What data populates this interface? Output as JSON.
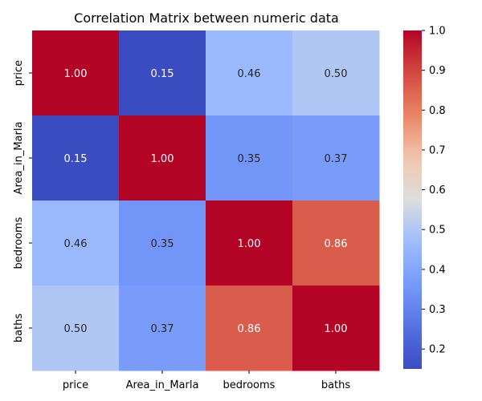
{
  "chart_data": {
    "type": "heatmap",
    "title": "Correlation Matrix between numeric data",
    "x_categories": [
      "price",
      "Area_in_Marla",
      "bedrooms",
      "baths"
    ],
    "y_categories": [
      "price",
      "Area_in_Marla",
      "bedrooms",
      "baths"
    ],
    "values": [
      [
        1.0,
        0.15,
        0.46,
        0.5
      ],
      [
        0.15,
        1.0,
        0.35,
        0.37
      ],
      [
        0.46,
        0.35,
        1.0,
        0.86
      ],
      [
        0.5,
        0.37,
        0.86,
        1.0
      ]
    ],
    "value_format": "0.00",
    "colormap": "coolwarm",
    "vmin": 0.15,
    "vmax": 1.0,
    "colorbar_ticks": [
      0.2,
      0.3,
      0.4,
      0.5,
      0.6,
      0.7,
      0.8,
      0.9,
      1.0
    ],
    "colorbar_tick_labels": [
      "0.2",
      "0.3",
      "0.4",
      "0.5",
      "0.6",
      "0.7",
      "0.8",
      "0.9",
      "1.0"
    ],
    "xlabel": "",
    "ylabel": "",
    "annot_text_color_light": "#ffffff",
    "annot_text_color_dark": "#262626",
    "grid": false,
    "colorbar_placement": "right"
  }
}
